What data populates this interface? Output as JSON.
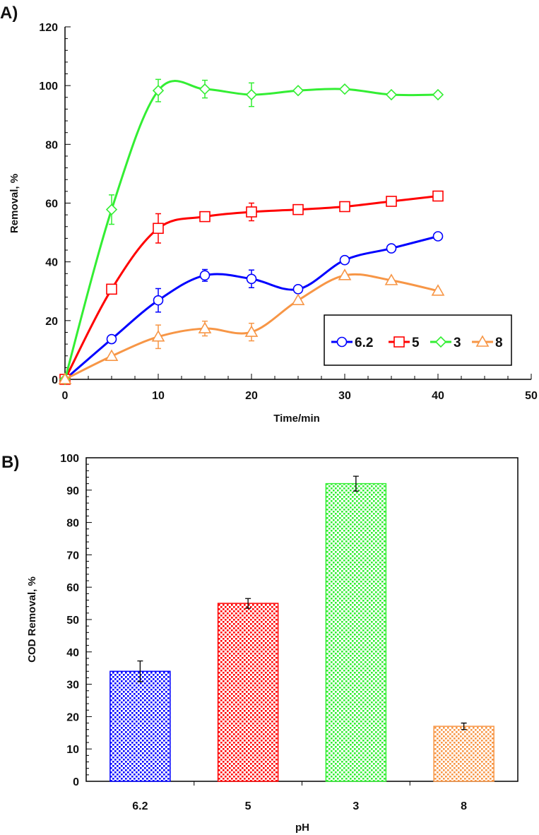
{
  "chart_data": [
    {
      "type": "line",
      "panel_label": "A)",
      "xlabel": "Time/min",
      "ylabel": "Removal,  %",
      "xlim": [
        0,
        50
      ],
      "ylim": [
        0,
        120
      ],
      "xticks": [
        0,
        10,
        20,
        30,
        40,
        50
      ],
      "yticks": [
        0,
        20,
        40,
        60,
        80,
        100,
        120
      ],
      "grid": false,
      "legend_position": "bottom-right",
      "x": [
        0,
        5,
        10,
        15,
        20,
        25,
        30,
        35,
        40
      ],
      "series": [
        {
          "name": "6.2",
          "color": "#0000ff",
          "marker": "circle",
          "values": [
            0,
            13.7,
            26.9,
            35.4,
            34.2,
            30.7,
            40.6,
            44.6,
            48.7
          ],
          "errors": [
            0,
            0,
            4,
            2,
            3,
            0,
            0,
            0,
            0
          ]
        },
        {
          "name": "5",
          "color": "#ff0000",
          "marker": "square",
          "values": [
            0,
            30.7,
            51.4,
            55.4,
            57,
            57.8,
            58.8,
            60.6,
            62.4
          ],
          "errors": [
            0,
            0,
            5,
            0,
            3,
            0,
            0,
            0,
            0
          ]
        },
        {
          "name": "3",
          "color": "#33ee33",
          "marker": "diamond",
          "values": [
            0,
            57.8,
            98.3,
            98.8,
            96.9,
            98.3,
            98.8,
            96.9,
            96.9
          ],
          "errors": [
            0,
            5,
            3.8,
            3,
            4,
            0,
            0,
            0,
            0
          ]
        },
        {
          "name": "8",
          "color": "#f79646",
          "marker": "triangle",
          "values": [
            0,
            7.9,
            14.5,
            17.3,
            16.1,
            26.9,
            35.4,
            33.7,
            30.1
          ],
          "errors": [
            0,
            0,
            4,
            2.5,
            3,
            0,
            0,
            0,
            0
          ]
        }
      ]
    },
    {
      "type": "bar",
      "panel_label": "B)",
      "xlabel": "pH",
      "ylabel": "COD Removal,  %",
      "ylim": [
        0,
        100
      ],
      "yticks": [
        0,
        10,
        20,
        30,
        40,
        50,
        60,
        70,
        80,
        90,
        100
      ],
      "grid": false,
      "categories": [
        "6.2",
        "5",
        "3",
        "8"
      ],
      "values": [
        34,
        55,
        92,
        17
      ],
      "errors": [
        3.2,
        1.5,
        2.3,
        1
      ],
      "colors": [
        "#0000ff",
        "#ff0000",
        "#33ee33",
        "#f79646"
      ]
    }
  ]
}
